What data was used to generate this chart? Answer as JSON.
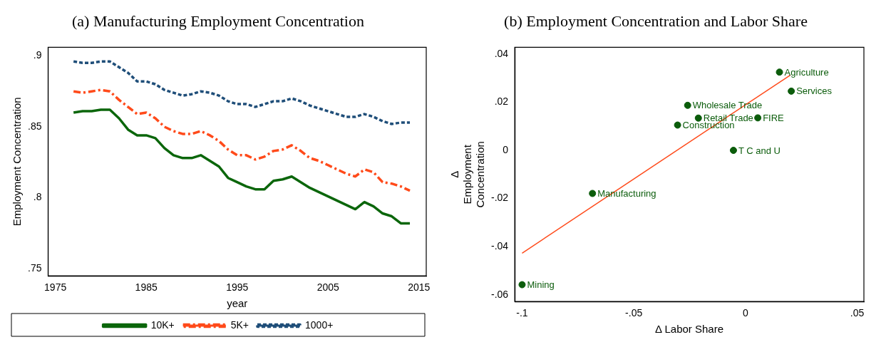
{
  "chart_data": [
    {
      "type": "line",
      "title": "(a) Manufacturing Employment Concentration",
      "xlabel": "year",
      "ylabel": "Employment Concentration",
      "x": [
        1977,
        1978,
        1979,
        1980,
        1981,
        1982,
        1983,
        1984,
        1985,
        1986,
        1987,
        1988,
        1989,
        1990,
        1991,
        1992,
        1993,
        1994,
        1995,
        1996,
        1997,
        1998,
        1999,
        2000,
        2001,
        2002,
        2003,
        2004,
        2005,
        2006,
        2007,
        2008,
        2009,
        2010,
        2011,
        2012,
        2013,
        2014
      ],
      "series": [
        {
          "name": "10K+",
          "color": "#0b660b",
          "line_style": "solid",
          "values": [
            0.86,
            0.861,
            0.861,
            0.862,
            0.862,
            0.856,
            0.848,
            0.844,
            0.844,
            0.842,
            0.835,
            0.83,
            0.828,
            0.828,
            0.83,
            0.826,
            0.822,
            0.814,
            0.811,
            0.808,
            0.806,
            0.806,
            0.812,
            0.813,
            0.815,
            0.811,
            0.807,
            0.804,
            0.801,
            0.798,
            0.795,
            0.792,
            0.797,
            0.794,
            0.789,
            0.787,
            0.782,
            0.782
          ]
        },
        {
          "name": "5K+",
          "color": "#ff4a1a",
          "line_style": "dashed",
          "values": [
            0.875,
            0.874,
            0.875,
            0.876,
            0.875,
            0.869,
            0.864,
            0.859,
            0.86,
            0.856,
            0.85,
            0.847,
            0.845,
            0.845,
            0.847,
            0.844,
            0.84,
            0.834,
            0.83,
            0.83,
            0.827,
            0.829,
            0.833,
            0.834,
            0.837,
            0.833,
            0.828,
            0.826,
            0.823,
            0.82,
            0.817,
            0.815,
            0.82,
            0.818,
            0.811,
            0.81,
            0.808,
            0.805
          ]
        },
        {
          "name": "1000+",
          "color": "#1f4e79",
          "line_style": "dotted",
          "values": [
            0.896,
            0.895,
            0.895,
            0.896,
            0.896,
            0.892,
            0.888,
            0.882,
            0.882,
            0.88,
            0.876,
            0.874,
            0.872,
            0.873,
            0.875,
            0.874,
            0.872,
            0.868,
            0.866,
            0.866,
            0.864,
            0.866,
            0.868,
            0.868,
            0.87,
            0.868,
            0.865,
            0.863,
            0.861,
            0.859,
            0.857,
            0.857,
            0.859,
            0.857,
            0.854,
            0.852,
            0.853,
            0.853
          ]
        }
      ],
      "xlim": [
        1974.2,
        2015.8
      ],
      "xticks": [
        1975,
        1985,
        1995,
        2005,
        2015
      ],
      "ylim": [
        0.745,
        0.906
      ],
      "yticks": [
        {
          "value": 0.75,
          "label": ".75"
        },
        {
          "value": 0.8,
          "label": ".8"
        },
        {
          "value": 0.85,
          "label": ".85"
        },
        {
          "value": 0.9,
          "label": ".9"
        }
      ],
      "legend": "bottom",
      "marker": "none"
    },
    {
      "type": "scatter",
      "title": "(b) Employment Concentration and Labor Share",
      "xlabel": "Δ Labor Share",
      "ylabel": "Δ Employment Concentration",
      "series": [
        {
          "color": "#0b5c0b",
          "marker": "circle",
          "x": [
            0.0152,
            0.0205,
            -0.0259,
            -0.0211,
            -0.0304,
            0.0055,
            -0.0054,
            -0.0685,
            -0.1
          ],
          "values": [
            0.0325,
            0.0246,
            0.0187,
            0.0134,
            0.0105,
            0.0135,
            0.0,
            -0.0179,
            -0.0558
          ]
        },
        {
          "type": "line",
          "color": "#ff4a1a",
          "x": [
            -0.1,
            0.0201
          ],
          "values": [
            -0.0427,
            0.0313
          ]
        }
      ],
      "annotations": [
        {
          "text": "Agriculture",
          "x": 0.0152,
          "y": 0.0325
        },
        {
          "text": "Services",
          "x": 0.0205,
          "y": 0.0246
        },
        {
          "text": "Wholesale Trade",
          "x": -0.0259,
          "y": 0.0187
        },
        {
          "text": "Retail Trade",
          "x": -0.0211,
          "y": 0.0134
        },
        {
          "text": "Construction",
          "x": -0.0304,
          "y": 0.0105
        },
        {
          "text": "FIRE",
          "x": 0.0055,
          "y": 0.0135
        },
        {
          "text": "T C and U",
          "x": -0.0054,
          "y": 0.0
        },
        {
          "text": "Manufacturing",
          "x": -0.0685,
          "y": -0.0179
        },
        {
          "text": "Mining",
          "x": -0.1,
          "y": -0.0558
        }
      ],
      "xlim": [
        -0.1033,
        0.053
      ],
      "xticks": [
        {
          "value": -0.1,
          "label": "-.1"
        },
        {
          "value": -0.05,
          "label": "-.05"
        },
        0,
        {
          "value": 0.05,
          "label": ".05"
        }
      ],
      "ylim": [
        -0.0628,
        0.0428
      ],
      "yticks": [
        {
          "value": -0.06,
          "label": "-.06"
        },
        {
          "value": -0.04,
          "label": "-.04"
        },
        {
          "value": -0.02,
          "label": "-.02"
        },
        0,
        {
          "value": 0.02,
          "label": ".02"
        },
        {
          "value": 0.04,
          "label": ".04"
        }
      ],
      "legend": false
    }
  ]
}
